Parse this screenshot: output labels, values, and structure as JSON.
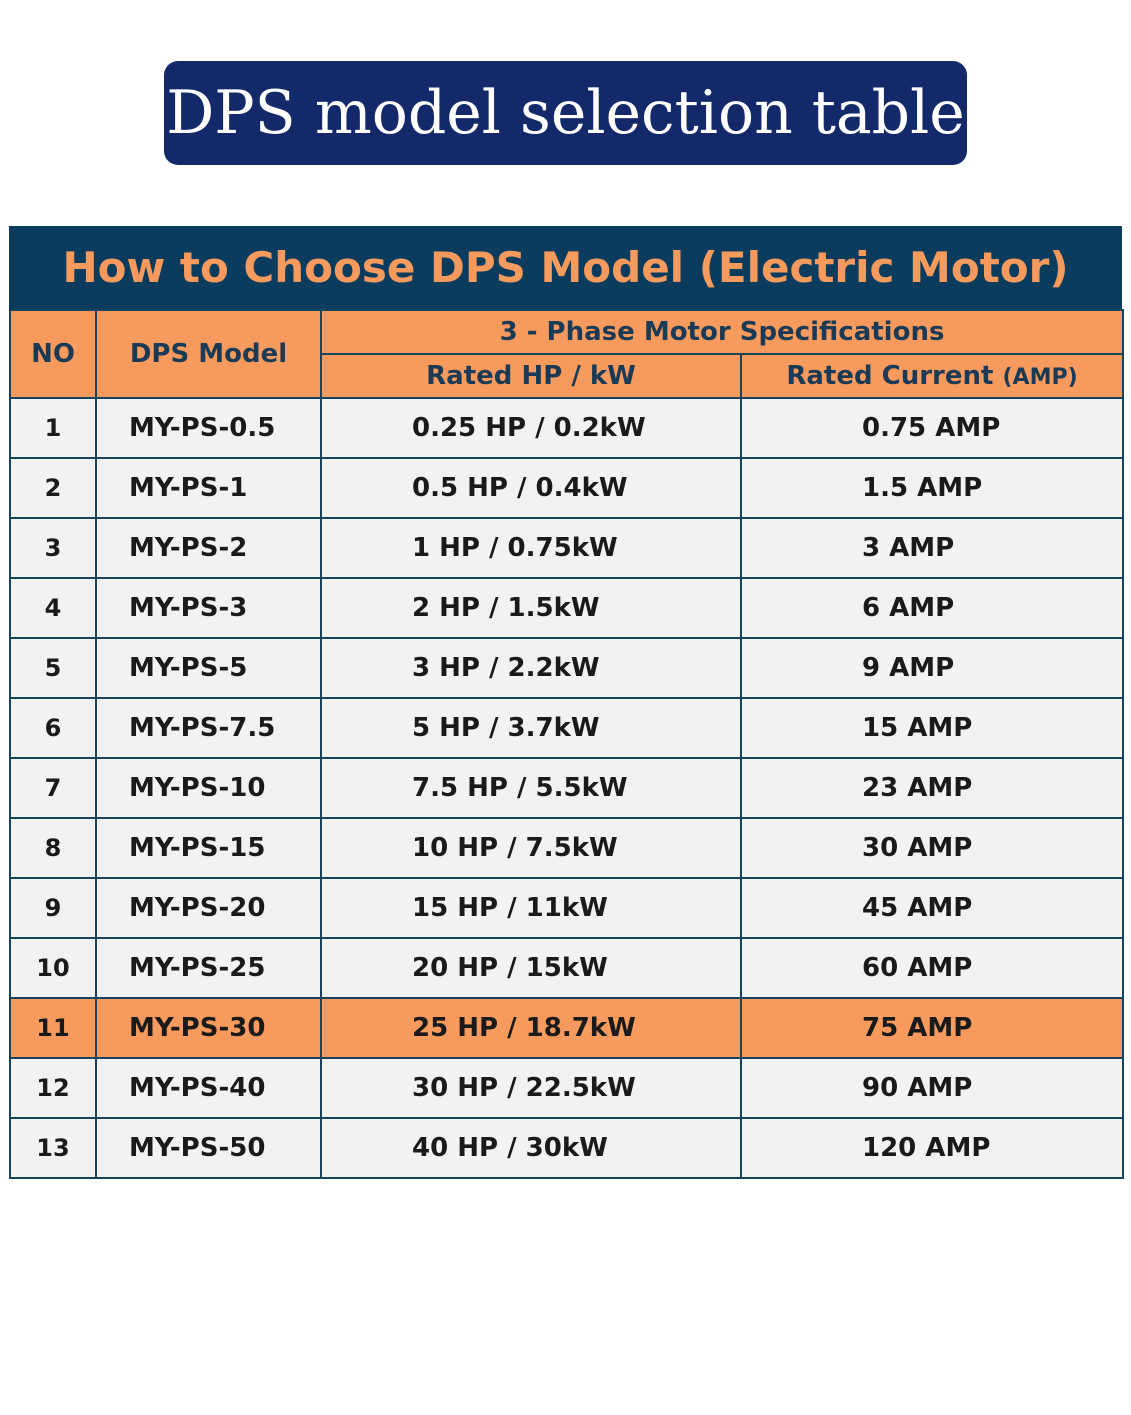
{
  "page_title": "DPS model selection table",
  "table": {
    "heading": "How to Choose DPS Model (Electric Motor)",
    "headers": {
      "no": "NO",
      "model": "DPS Model",
      "group": "3 - Phase Motor Specifications",
      "hp": "Rated HP / kW",
      "current": "Rated Current",
      "current_unit": "(AMP)"
    },
    "colors": {
      "title_bg": "#13296a",
      "heading_bg": "#0b3c5d",
      "accent_orange": "#f79a5d",
      "row_bg": "#f2f2f2",
      "border": "#17435f"
    },
    "highlighted_row": 11,
    "rows": [
      {
        "no": "1",
        "model": "MY-PS-0.5",
        "hp": "0.25 HP / 0.2kW",
        "amp": "0.75 AMP"
      },
      {
        "no": "2",
        "model": "MY-PS-1",
        "hp": "0.5 HP / 0.4kW",
        "amp": "1.5 AMP"
      },
      {
        "no": "3",
        "model": "MY-PS-2",
        "hp": "1 HP / 0.75kW",
        "amp": "3 AMP"
      },
      {
        "no": "4",
        "model": "MY-PS-3",
        "hp": "2 HP / 1.5kW",
        "amp": "6 AMP"
      },
      {
        "no": "5",
        "model": "MY-PS-5",
        "hp": "3 HP / 2.2kW",
        "amp": "9 AMP"
      },
      {
        "no": "6",
        "model": "MY-PS-7.5",
        "hp": "5 HP / 3.7kW",
        "amp": "15 AMP"
      },
      {
        "no": "7",
        "model": "MY-PS-10",
        "hp": "7.5 HP / 5.5kW",
        "amp": "23 AMP"
      },
      {
        "no": "8",
        "model": "MY-PS-15",
        "hp": "10 HP / 7.5kW",
        "amp": "30 AMP"
      },
      {
        "no": "9",
        "model": "MY-PS-20",
        "hp": "15 HP / 11kW",
        "amp": "45 AMP"
      },
      {
        "no": "10",
        "model": "MY-PS-25",
        "hp": "20 HP / 15kW",
        "amp": "60 AMP"
      },
      {
        "no": "11",
        "model": "MY-PS-30",
        "hp": "25 HP / 18.7kW",
        "amp": "75 AMP"
      },
      {
        "no": "12",
        "model": "MY-PS-40",
        "hp": "30 HP / 22.5kW",
        "amp": "90 AMP"
      },
      {
        "no": "13",
        "model": "MY-PS-50",
        "hp": "40 HP / 30kW",
        "amp": "120 AMP"
      }
    ]
  }
}
